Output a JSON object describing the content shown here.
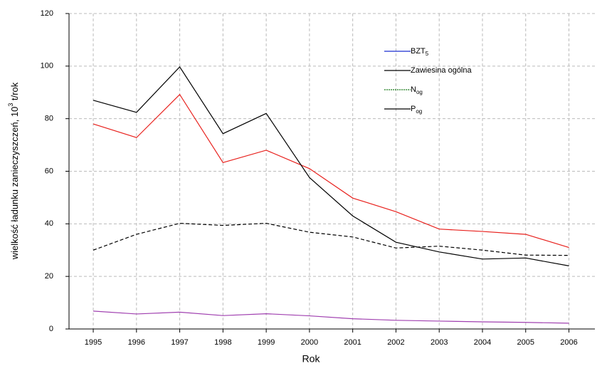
{
  "chart_data": {
    "type": "line",
    "xlabel": "Rok",
    "ylabel": {
      "text": "wielkość ładunku zanieczyszczeń, 10",
      "sup": "3",
      "after": " t/rok"
    },
    "x": [
      1995,
      1996,
      1997,
      1998,
      1999,
      2000,
      2001,
      2002,
      2003,
      2004,
      2005,
      2006
    ],
    "xlim": [
      1994.44,
      2006.6
    ],
    "xticks": [
      1995,
      1996,
      1997,
      1998,
      1999,
      2000,
      2001,
      2002,
      2003,
      2004,
      2005,
      2006
    ],
    "ylim": [
      0,
      120
    ],
    "yticks": [
      0,
      20,
      40,
      60,
      80,
      100,
      120
    ],
    "grid": true,
    "series": [
      {
        "name": "BZT",
        "name_sub": "5",
        "color": "#e8201c",
        "legend_color": "#1a2fd0",
        "dash": false,
        "values": [
          78,
          72.8,
          89.2,
          63.3,
          68,
          61,
          49.8,
          44.6,
          38,
          37.1,
          36,
          31
        ]
      },
      {
        "name": "Zawiesina ogólna",
        "color": "#000000",
        "legend_color": "#000000",
        "dash": false,
        "values": [
          87,
          82.4,
          99.7,
          74.3,
          82,
          57.6,
          43,
          33,
          29.3,
          26.6,
          27,
          24
        ]
      },
      {
        "name": "N",
        "name_sub": "og",
        "color": "#000000",
        "legend_color": "#1a7a1a",
        "dash": true,
        "values": [
          30,
          36,
          40.2,
          39.4,
          40.2,
          36.8,
          35,
          30.8,
          31.5,
          30,
          28.1,
          28
        ]
      },
      {
        "name": "P",
        "name_sub": "og",
        "color": "#a040b0",
        "legend_color": "#000000",
        "dash": false,
        "values": [
          6.8,
          5.7,
          6.4,
          5.1,
          5.8,
          5,
          3.9,
          3.3,
          3,
          2.7,
          2.5,
          2.2
        ]
      }
    ]
  }
}
